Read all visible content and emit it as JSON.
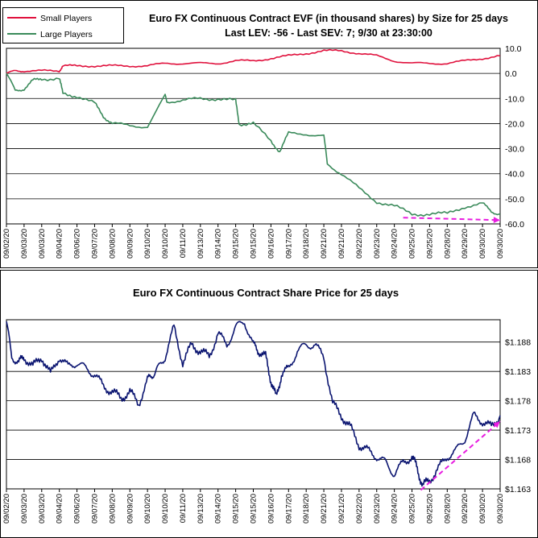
{
  "colors": {
    "small_players": "#e0103c",
    "large_players": "#3a8a5a",
    "price": "#0a1470",
    "trend": "#e81ce0",
    "grid": "#000000"
  },
  "chart_data": [
    {
      "type": "line",
      "title": "Euro FX Continuous Contract EVF (in thousand shares) by Size for 25 days",
      "subtitle": "Last LEV: -56 - Last SEV: 7; 9/30 at 23:30:00",
      "ylim": [
        -60,
        10
      ],
      "yticks": [
        "10.0",
        "0.0",
        "-10.0",
        "-20.0",
        "-30.0",
        "-40.0",
        "-50.0",
        "-60.0"
      ],
      "ytick_values": [
        10,
        0,
        -10,
        -20,
        -30,
        -40,
        -50,
        -60
      ],
      "legend_position": "top-left",
      "categories": [
        "09/02/20",
        "09/03/20",
        "09/03/20",
        "09/04/20",
        "09/06/20",
        "09/07/20",
        "09/08/20",
        "09/09/20",
        "09/10/20",
        "09/10/20",
        "09/11/20",
        "09/13/20",
        "09/14/20",
        "09/15/20",
        "09/15/20",
        "09/16/20",
        "09/17/20",
        "09/18/20",
        "09/21/20",
        "09/21/20",
        "09/22/20",
        "09/23/20",
        "09/24/20",
        "09/25/20",
        "09/25/20",
        "09/28/20",
        "09/29/20",
        "09/30/20",
        "09/30/20"
      ],
      "series": [
        {
          "name": "Small Players",
          "x": [
            0,
            0.5,
            1,
            2,
            3,
            3.2,
            4,
            5,
            6,
            7,
            8,
            9,
            10,
            11,
            12,
            13,
            14,
            15,
            16,
            17,
            18,
            19,
            20,
            21,
            22,
            23,
            24,
            25,
            26,
            27,
            28
          ],
          "values": [
            0,
            1,
            1,
            1,
            1,
            3,
            3,
            3,
            3,
            3,
            3,
            4,
            4,
            4,
            4,
            5,
            5,
            6,
            7,
            8,
            9,
            9,
            8,
            7,
            5,
            4,
            4,
            4,
            5,
            6,
            7
          ]
        },
        {
          "name": "Large Players",
          "x": [
            0,
            0.5,
            1,
            1.5,
            2,
            3,
            3.2,
            4,
            5,
            5.5,
            6,
            7,
            8,
            9,
            9.1,
            10,
            11,
            12,
            13,
            13.2,
            14,
            15,
            15.5,
            16,
            17,
            18,
            18.2,
            19,
            20,
            21,
            22,
            23,
            24,
            25,
            26,
            27,
            27.5,
            28
          ],
          "values": [
            0,
            -7,
            -6,
            -3,
            -2,
            -2,
            -8,
            -9,
            -12,
            -17,
            -20,
            -21,
            -21,
            -9,
            -11,
            -11,
            -10,
            -10,
            -11,
            -20,
            -20,
            -27,
            -31,
            -24,
            -24,
            -25,
            -36,
            -40,
            -46,
            -51,
            -53,
            -56,
            -56,
            -56,
            -53,
            -52,
            -55,
            -56
          ]
        }
      ],
      "trendline": {
        "x": [
          22.5,
          28
        ],
        "values": [
          -57.5,
          -58.5
        ]
      }
    },
    {
      "type": "line",
      "title": "Euro FX Continuous Contract Share Price for 25 days",
      "ylim": [
        1.163,
        1.1918
      ],
      "yticks": [
        "$1.188",
        "$1.183",
        "$1.178",
        "$1.173",
        "$1.168",
        "$1.163"
      ],
      "ytick_values": [
        1.188,
        1.183,
        1.178,
        1.173,
        1.168,
        1.163
      ],
      "categories": [
        "09/02/20",
        "09/03/20",
        "09/03/20",
        "09/04/20",
        "09/06/20",
        "09/07/20",
        "09/08/20",
        "09/09/20",
        "09/10/20",
        "09/10/20",
        "09/11/20",
        "09/13/20",
        "09/14/20",
        "09/15/20",
        "09/15/20",
        "09/16/20",
        "09/17/20",
        "09/18/20",
        "09/21/20",
        "09/21/20",
        "09/22/20",
        "09/23/20",
        "09/24/20",
        "09/25/20",
        "09/25/20",
        "09/28/20",
        "09/29/20",
        "09/30/20",
        "09/30/20"
      ],
      "series": [
        {
          "x": [
            0,
            0.3,
            0.7,
            1,
            1.5,
            2,
            2.5,
            3,
            3.5,
            4,
            4.5,
            5,
            5.5,
            6,
            6.5,
            7,
            7.5,
            8,
            8.3,
            8.6,
            9,
            9.5,
            10,
            10.5,
            11,
            11.5,
            12,
            12.5,
            13,
            13.5,
            14,
            14.3,
            14.7,
            15,
            15.3,
            15.6,
            16,
            16.5,
            17,
            17.5,
            18,
            18.5,
            19,
            19.5,
            20,
            20.5,
            21,
            21.5,
            22,
            22.5,
            23,
            23.3,
            23.6,
            24,
            24.5,
            25,
            25.5,
            26,
            26.5,
            27,
            27.5,
            28
          ],
          "values": [
            1.1915,
            1.1855,
            1.1845,
            1.1855,
            1.1838,
            1.1855,
            1.1825,
            1.1855,
            1.1838,
            1.1845,
            1.1835,
            1.1825,
            1.1805,
            1.1795,
            1.1785,
            1.1795,
            1.1775,
            1.1815,
            1.1825,
            1.1835,
            1.1855,
            1.1905,
            1.1845,
            1.1875,
            1.1865,
            1.1855,
            1.1895,
            1.1875,
            1.1905,
            1.1915,
            1.1875,
            1.1865,
            1.1855,
            1.1815,
            1.1785,
            1.1825,
            1.1835,
            1.1865,
            1.1875,
            1.1875,
            1.1855,
            1.1775,
            1.1755,
            1.1735,
            1.1705,
            1.1695,
            1.1685,
            1.1675,
            1.1655,
            1.1675,
            1.1685,
            1.1665,
            1.1635,
            1.1645,
            1.1665,
            1.1685,
            1.1695,
            1.1715,
            1.1755,
            1.1745,
            1.1735,
            1.1755
          ]
        }
      ],
      "trendline": {
        "x": [
          23.5,
          28
        ],
        "values": [
          1.1628,
          1.1745
        ]
      }
    }
  ]
}
